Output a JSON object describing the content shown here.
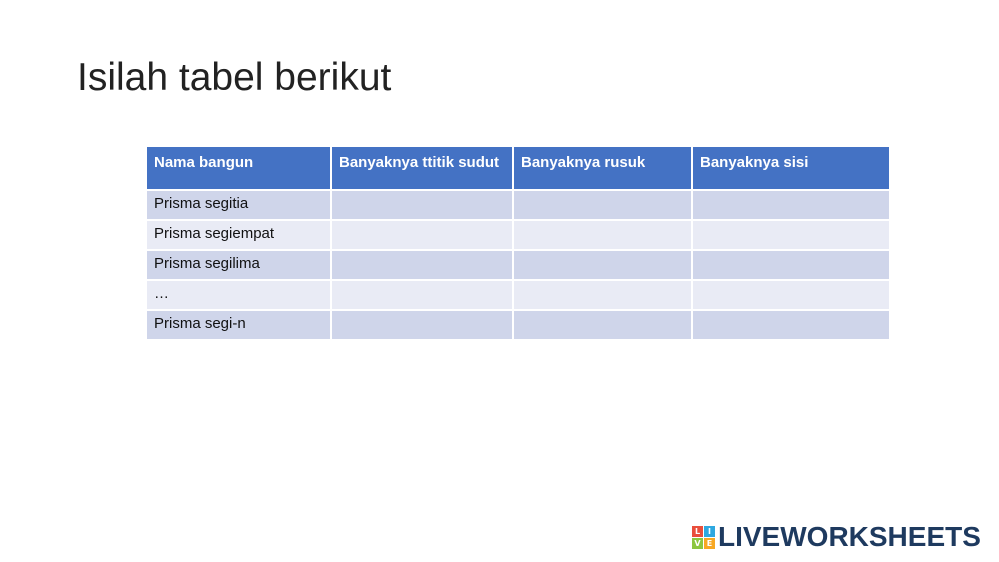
{
  "title": "Isilah tabel berikut",
  "table": {
    "header": [
      "Nama bangun",
      "Banyaknya ttitik sudut",
      "Banyaknya rusuk",
      "Banyaknya sisi"
    ],
    "rows": [
      "Prisma segitia",
      "Prisma segiempat",
      "Prisma segilima",
      "…",
      "Prisma segi-n"
    ]
  },
  "logo": {
    "icon": [
      "L",
      "I",
      "V",
      "E"
    ],
    "text": "LIVEWORKSHEETS"
  }
}
